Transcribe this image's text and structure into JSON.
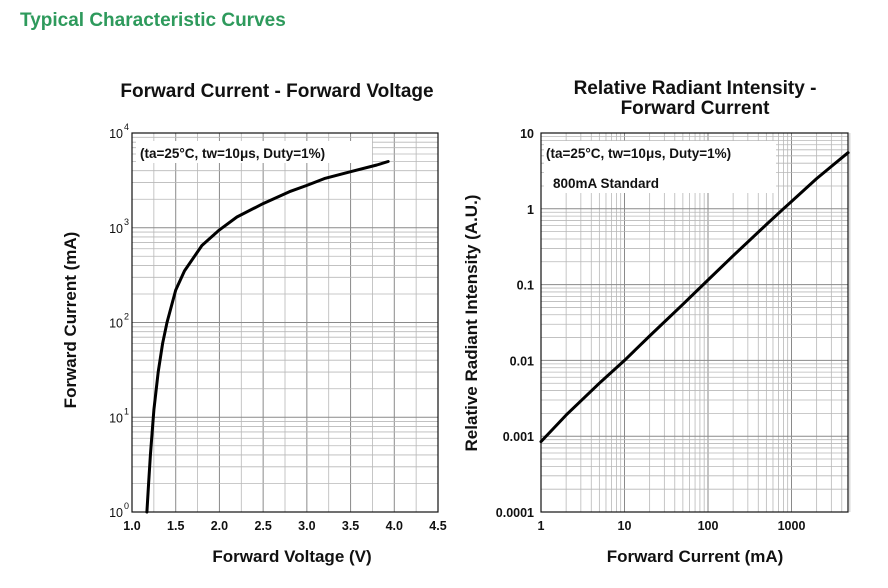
{
  "page": {
    "title": "Typical Characteristic Curves"
  },
  "chart_data": [
    {
      "type": "line",
      "title": "Forward Current - Forward Voltage",
      "annotation": "(ta=25°C, tw=10μs, Duty=1%)",
      "xlabel": "Forward Voltage (V)",
      "ylabel": "Forward Current (mA)",
      "xscale": "linear",
      "yscale": "log",
      "xlim": [
        1.0,
        4.5
      ],
      "ylim": [
        1,
        10000
      ],
      "x_ticks": [
        "1.0",
        "1.5",
        "2.0",
        "2.5",
        "3.0",
        "3.5",
        "4.0",
        "4.5"
      ],
      "y_ticks": [
        {
          "base": "10",
          "exp": "0"
        },
        {
          "base": "10",
          "exp": "1"
        },
        {
          "base": "10",
          "exp": "2"
        },
        {
          "base": "10",
          "exp": "3"
        },
        {
          "base": "10",
          "exp": "4"
        }
      ],
      "grid": true,
      "series": [
        {
          "x": [
            1.17,
            1.19,
            1.21,
            1.25,
            1.3,
            1.35,
            1.4,
            1.5,
            1.6,
            1.8,
            2.0,
            2.2,
            2.5,
            2.8,
            3.0,
            3.2,
            3.5,
            3.8,
            3.93
          ],
          "y": [
            1,
            2,
            4,
            12,
            30,
            60,
            100,
            220,
            350,
            650,
            950,
            1300,
            1800,
            2400,
            2800,
            3300,
            3900,
            4600,
            5000
          ]
        }
      ]
    },
    {
      "type": "line",
      "title": "Relative Radiant Intensity - Forward Current",
      "title_lines": [
        "Relative Radiant Intensity -",
        "Forward Current"
      ],
      "annotation": "(ta=25°C, tw=10μs, Duty=1%)",
      "annotation2": "800mA Standard",
      "xlabel": "Forward Current (mA)",
      "ylabel": "Relative Radiant Intensity (A.U.)",
      "xscale": "log",
      "yscale": "log",
      "xlim": [
        1,
        5000
      ],
      "ylim": [
        0.0001,
        10
      ],
      "x_ticks": [
        "1",
        "10",
        "100",
        "1000"
      ],
      "y_ticks": [
        "0.0001",
        "0.001",
        "0.01",
        "0.1",
        "1",
        "10"
      ],
      "grid": true,
      "series": [
        {
          "x": [
            1,
            2,
            5,
            10,
            20,
            50,
            100,
            200,
            500,
            800,
            1000,
            2000,
            5000
          ],
          "y": [
            0.00085,
            0.0019,
            0.005,
            0.01,
            0.021,
            0.055,
            0.115,
            0.24,
            0.62,
            1.0,
            1.25,
            2.5,
            5.5
          ]
        }
      ]
    }
  ]
}
